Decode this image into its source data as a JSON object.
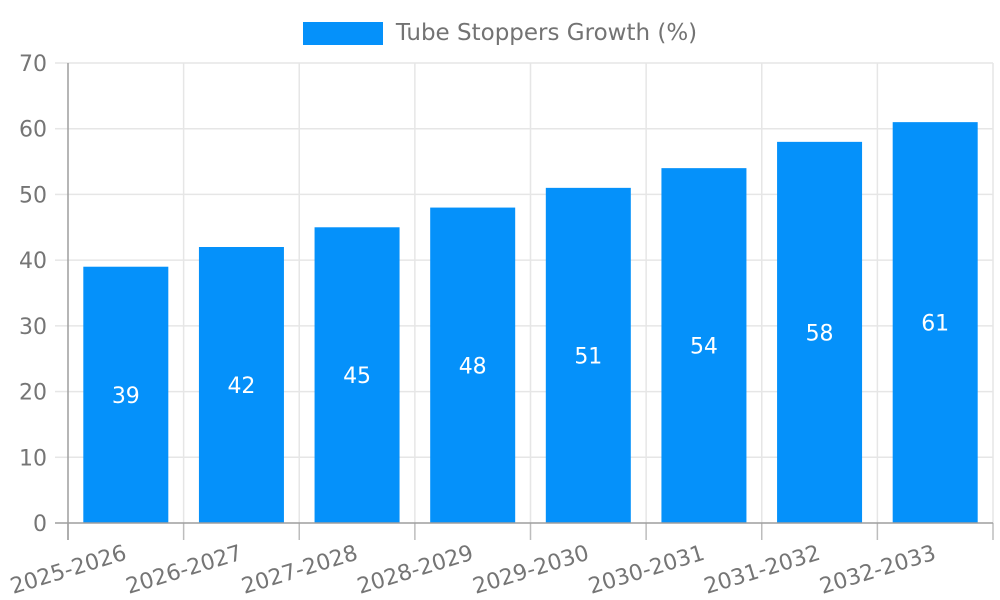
{
  "legend": {
    "label": "Tube Stoppers Growth (%)"
  },
  "chart_data": {
    "type": "bar",
    "title": "Tube Stoppers Growth (%)",
    "series_name": "Tube Stoppers Growth (%)",
    "categories": [
      "2025-2026",
      "2026-2027",
      "2027-2028",
      "2028-2029",
      "2029-2030",
      "2030-2031",
      "2031-2032",
      "2032-2033"
    ],
    "values": [
      39,
      42,
      45,
      48,
      51,
      54,
      58,
      61
    ],
    "xlabel": "",
    "ylabel": "",
    "ylim": [
      0,
      70
    ],
    "yticks": [
      0,
      10,
      20,
      30,
      40,
      50,
      60,
      70
    ],
    "grid": true,
    "legend_position": "top-center",
    "value_labels_inside_bars": true,
    "colors": {
      "bar": "#0591fa",
      "value_label": "#ffffff",
      "tick_label": "#757575",
      "legend_text": "#737373",
      "gridline": "#e6e6e6",
      "axis_line": "#9e9e9e",
      "tick_mark": "#bdbdbd",
      "background": "#ffffff"
    }
  }
}
